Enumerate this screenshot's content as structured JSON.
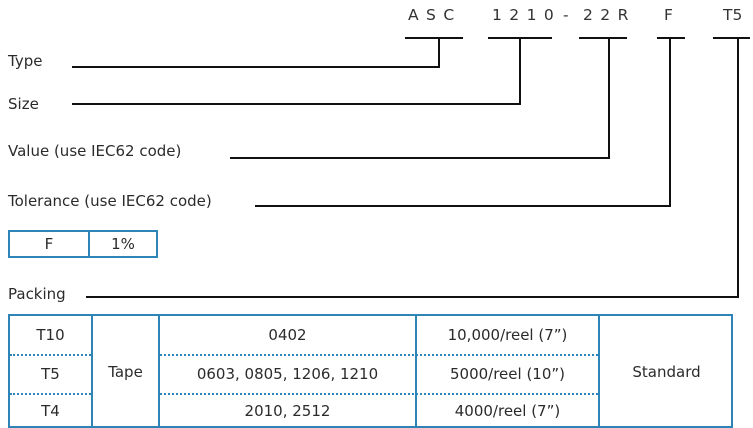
{
  "part_code": {
    "seg_type": "ASC",
    "seg_size": "1210",
    "seg_dash": "-",
    "seg_value": "22R",
    "seg_tol": "F",
    "seg_pack": "T5"
  },
  "fields": {
    "type": "Type",
    "size": "Size",
    "value": "Value (use IEC62 code)",
    "tolerance": "Tolerance (use IEC62 code)",
    "packing": "Packing"
  },
  "tolerance_table": {
    "code": "F",
    "value": "1%"
  },
  "packing_table": {
    "rows": [
      {
        "code": "T10",
        "size": "0402",
        "qty": "10,000/reel (7”)"
      },
      {
        "code": "T5",
        "size": "0603, 0805, 1206, 1210",
        "qty": "5000/reel (10”)"
      },
      {
        "code": "T4",
        "size": "2010, 2512",
        "qty": "4000/reel (7”)"
      }
    ],
    "method": "Tape",
    "grade": "Standard"
  },
  "colors": {
    "table_border": "#2e83b7",
    "lines": "#111111"
  }
}
